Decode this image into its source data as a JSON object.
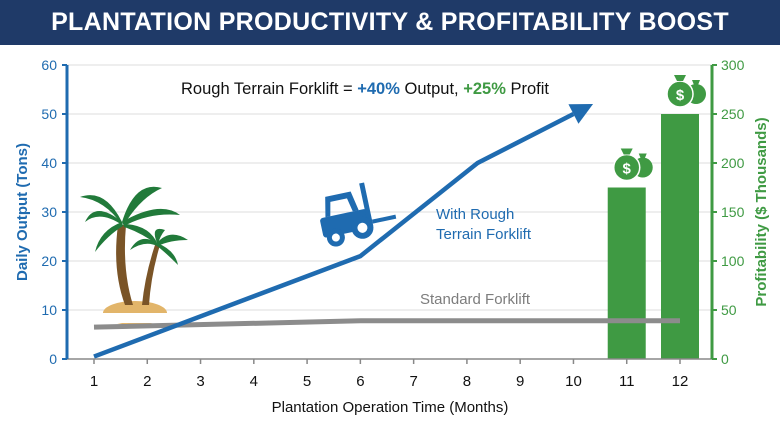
{
  "title": "PLANTATION PRODUCTIVITY & PROFITABILITY BOOST",
  "chart_data": {
    "type": "line+bar",
    "title": "PLANTATION PRODUCTIVITY & PROFITABILITY BOOST",
    "annotation": {
      "prefix": "Rough Terrain Forklift = ",
      "output": "+40%",
      "mid": " Output, ",
      "profit": "+25%",
      "suffix": " Profit"
    },
    "xlabel": "Plantation Operation Time (Months)",
    "ylabel": "Daily Output (Tons)",
    "y2label": "Profitability ($ Thousands)",
    "x_ticks": [
      "1",
      "2",
      "3",
      "4",
      "5",
      "6",
      "7",
      "8",
      "9",
      "10",
      "11",
      "12"
    ],
    "ylim": [
      0,
      60
    ],
    "y_ticks": [
      "0",
      "10",
      "20",
      "30",
      "40",
      "50",
      "60"
    ],
    "y2lim": [
      0,
      300
    ],
    "y2_ticks": [
      "0",
      "50",
      "100",
      "150",
      "200",
      "250",
      "300"
    ],
    "grid": true,
    "series": [
      {
        "name": "With Rough Terrain Forklift",
        "label_lines": [
          "With Rough",
          "Terrain Forklift"
        ],
        "type": "line",
        "axis": "left",
        "color": "#1f6bb0",
        "x": [
          1,
          6,
          8.2,
          10
        ],
        "y": [
          0.5,
          21,
          40,
          50
        ]
      },
      {
        "name": "Standard Forklift",
        "type": "line",
        "axis": "left",
        "color": "#8c8c8c",
        "x": [
          1,
          6,
          12
        ],
        "y": [
          6.5,
          7.8,
          7.8
        ]
      },
      {
        "name": "Profitability",
        "type": "bar",
        "axis": "right",
        "color": "#3f9a43",
        "x": [
          11,
          12
        ],
        "y": [
          175,
          250
        ]
      }
    ],
    "colors": {
      "blue": "#1f6bb0",
      "green": "#3f9a43",
      "gray": "#8c8c8c",
      "navy": "#1f3a68"
    }
  }
}
